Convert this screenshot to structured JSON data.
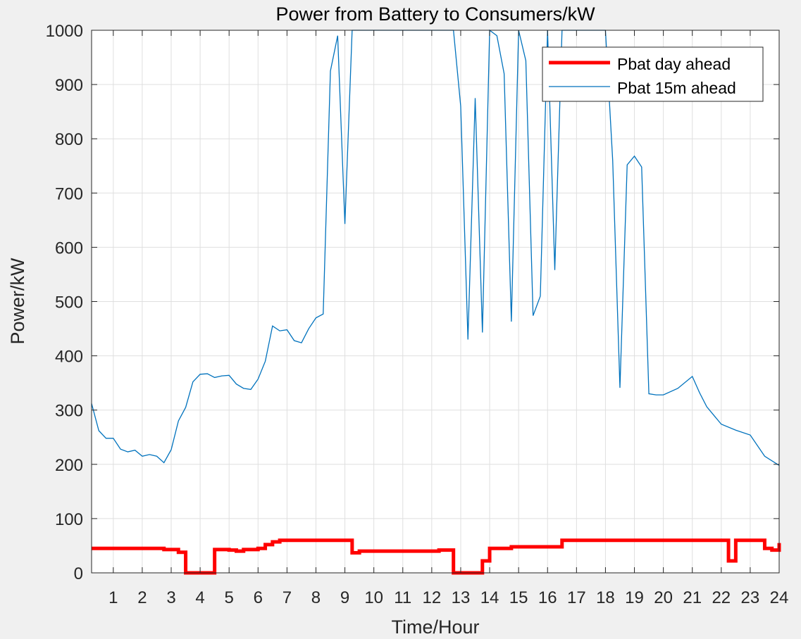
{
  "chart_data": {
    "type": "line",
    "title": "Power from Battery to Consumers/kW",
    "xlabel": "Time/Hour",
    "ylabel": "Power/kW",
    "xlim": [
      0.25,
      24
    ],
    "ylim": [
      0,
      1000
    ],
    "xticks": [
      1,
      2,
      3,
      4,
      5,
      6,
      7,
      8,
      9,
      10,
      11,
      12,
      13,
      14,
      15,
      16,
      17,
      18,
      19,
      20,
      21,
      22,
      23,
      24
    ],
    "yticks": [
      0,
      100,
      200,
      300,
      400,
      500,
      600,
      700,
      800,
      900,
      1000
    ],
    "grid": true,
    "legend_position": "top-right",
    "colors": {
      "day_ahead": "#ff0000",
      "ahead_15m": "#0072bd"
    },
    "series": [
      {
        "name": "Pbat day ahead",
        "step": true,
        "points": [
          [
            0.25,
            45
          ],
          [
            2.75,
            45
          ],
          [
            2.75,
            43
          ],
          [
            3.25,
            43
          ],
          [
            3.25,
            38
          ],
          [
            3.5,
            38
          ],
          [
            3.5,
            0
          ],
          [
            4.5,
            0
          ],
          [
            4.5,
            43
          ],
          [
            5.0,
            43
          ],
          [
            5.0,
            42
          ],
          [
            5.25,
            42
          ],
          [
            5.25,
            40
          ],
          [
            5.5,
            40
          ],
          [
            5.5,
            43
          ],
          [
            6.0,
            43
          ],
          [
            6.0,
            45
          ],
          [
            6.25,
            45
          ],
          [
            6.25,
            52
          ],
          [
            6.5,
            52
          ],
          [
            6.5,
            57
          ],
          [
            6.75,
            57
          ],
          [
            6.75,
            60
          ],
          [
            9.25,
            60
          ],
          [
            9.25,
            37
          ],
          [
            9.5,
            37
          ],
          [
            9.5,
            40
          ],
          [
            12.25,
            40
          ],
          [
            12.25,
            42
          ],
          [
            12.75,
            42
          ],
          [
            12.75,
            0
          ],
          [
            13.75,
            0
          ],
          [
            13.75,
            22
          ],
          [
            14.0,
            22
          ],
          [
            14.0,
            45
          ],
          [
            14.75,
            45
          ],
          [
            14.75,
            48
          ],
          [
            16.5,
            48
          ],
          [
            16.5,
            60
          ],
          [
            22.25,
            60
          ],
          [
            22.25,
            22
          ],
          [
            22.5,
            22
          ],
          [
            22.5,
            60
          ],
          [
            23.5,
            60
          ],
          [
            23.5,
            45
          ],
          [
            23.75,
            45
          ],
          [
            23.75,
            42
          ],
          [
            24.0,
            42
          ],
          [
            24.0,
            55
          ]
        ]
      },
      {
        "name": "Pbat 15m ahead",
        "step": false,
        "points": [
          [
            0.25,
            312
          ],
          [
            0.5,
            262
          ],
          [
            0.75,
            248
          ],
          [
            1.0,
            248
          ],
          [
            1.25,
            228
          ],
          [
            1.5,
            223
          ],
          [
            1.75,
            226
          ],
          [
            2.0,
            215
          ],
          [
            2.25,
            218
          ],
          [
            2.5,
            215
          ],
          [
            2.75,
            203
          ],
          [
            3.0,
            227
          ],
          [
            3.25,
            280
          ],
          [
            3.5,
            305
          ],
          [
            3.75,
            352
          ],
          [
            4.0,
            366
          ],
          [
            4.25,
            367
          ],
          [
            4.5,
            360
          ],
          [
            4.75,
            363
          ],
          [
            5.0,
            364
          ],
          [
            5.25,
            348
          ],
          [
            5.5,
            340
          ],
          [
            5.75,
            338
          ],
          [
            6.0,
            357
          ],
          [
            6.25,
            390
          ],
          [
            6.5,
            455
          ],
          [
            6.75,
            446
          ],
          [
            7.0,
            448
          ],
          [
            7.25,
            428
          ],
          [
            7.5,
            424
          ],
          [
            7.75,
            450
          ],
          [
            8.0,
            470
          ],
          [
            8.25,
            477
          ],
          [
            8.5,
            925
          ],
          [
            8.75,
            990
          ],
          [
            9.0,
            643
          ],
          [
            9.25,
            1000
          ],
          [
            12.75,
            1000
          ],
          [
            13.0,
            860
          ],
          [
            13.25,
            430
          ],
          [
            13.5,
            875
          ],
          [
            13.75,
            443
          ],
          [
            14.0,
            1000
          ],
          [
            14.25,
            990
          ],
          [
            14.5,
            920
          ],
          [
            14.75,
            463
          ],
          [
            15.0,
            1000
          ],
          [
            15.25,
            944
          ],
          [
            15.5,
            474
          ],
          [
            15.75,
            510
          ],
          [
            16.0,
            1000
          ],
          [
            16.25,
            558
          ],
          [
            16.5,
            1000
          ],
          [
            18.0,
            1000
          ],
          [
            18.25,
            760
          ],
          [
            18.5,
            341
          ],
          [
            18.75,
            752
          ],
          [
            19.0,
            768
          ],
          [
            19.25,
            748
          ],
          [
            19.5,
            330
          ],
          [
            19.75,
            328
          ],
          [
            20.0,
            328
          ],
          [
            20.5,
            340
          ],
          [
            21.0,
            362
          ],
          [
            21.25,
            332
          ],
          [
            21.5,
            306
          ],
          [
            21.75,
            290
          ],
          [
            22.0,
            274
          ],
          [
            22.5,
            263
          ],
          [
            23.0,
            254
          ],
          [
            23.5,
            215
          ],
          [
            24.0,
            198
          ]
        ]
      }
    ]
  }
}
